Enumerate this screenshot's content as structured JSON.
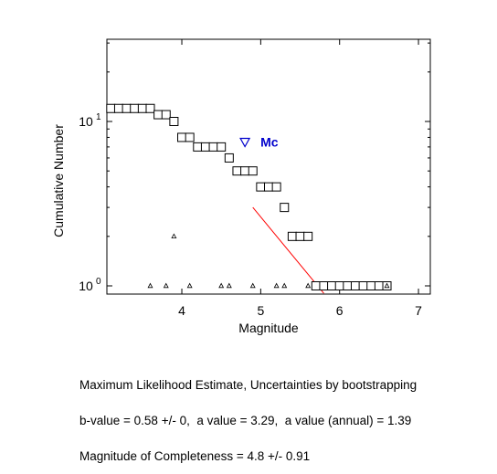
{
  "chart_data": {
    "type": "scatter",
    "xlabel": "Magnitude",
    "ylabel": "Cumulative Number",
    "xlim": [
      3.05,
      7.15
    ],
    "ylim_log10": [
      -0.05,
      1.5
    ],
    "y_scale": "log",
    "x_ticks": [
      4,
      5,
      6,
      7
    ],
    "y_ticks": [
      {
        "value": 1,
        "label": "10",
        "exp": "0"
      },
      {
        "value": 10,
        "label": "10",
        "exp": "1"
      }
    ],
    "grid": false,
    "cumulative_series": {
      "name": "",
      "marker": "square",
      "x": [
        3.1,
        3.2,
        3.3,
        3.4,
        3.5,
        3.6,
        3.7,
        3.8,
        3.9,
        4.0,
        4.1,
        4.2,
        4.3,
        4.4,
        4.5,
        4.6,
        4.7,
        4.8,
        4.9,
        5.0,
        5.1,
        5.2,
        5.3,
        5.4,
        5.5,
        5.6,
        5.7,
        5.8,
        5.9,
        6.0,
        6.1,
        6.2,
        6.3,
        6.4,
        6.5,
        6.6
      ],
      "y": [
        12,
        12,
        12,
        12,
        12,
        12,
        11,
        11,
        10,
        8,
        8,
        7,
        7,
        7,
        7,
        6,
        5,
        5,
        5,
        4,
        4,
        4,
        3,
        2,
        2,
        2,
        1,
        1,
        1,
        1,
        1,
        1,
        1,
        1,
        1,
        1
      ]
    },
    "noncumulative_series": {
      "name": "",
      "marker": "triangle",
      "x": [
        3.6,
        3.8,
        3.9,
        4.1,
        4.5,
        4.6,
        4.9,
        5.2,
        5.3,
        5.6,
        6.6
      ],
      "y": [
        1,
        1,
        2,
        1,
        1,
        1,
        1,
        1,
        1,
        1,
        1
      ]
    },
    "fit_line": {
      "color": "#ff0000",
      "x": [
        4.9,
        5.8
      ],
      "y": [
        3.0,
        0.9
      ]
    },
    "mc_marker": {
      "x": 4.8,
      "y": 7.5,
      "label": "Mc",
      "color": "#0000cc"
    }
  },
  "footer": {
    "line1": "Maximum Likelihood Estimate, Uncertainties by bootstrapping",
    "line2": "b-value = 0.58 +/- 0,  a value = 3.29,  a value (annual) = 1.39",
    "line3": "Magnitude of Completeness = 4.8 +/- 0.91"
  }
}
